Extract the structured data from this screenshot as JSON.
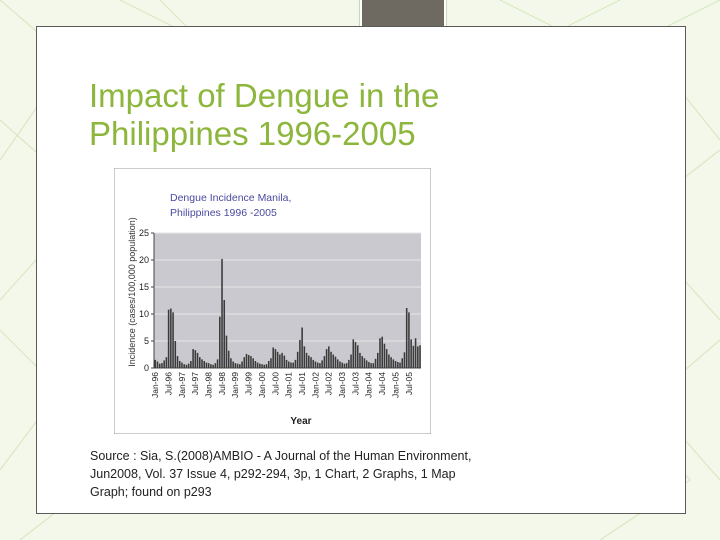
{
  "slide": {
    "title_lines": [
      "Impact of Dengue in the",
      "Philippines 1996-2005"
    ],
    "source_lines": [
      "Source : Sia, S.(2008)AMBIO - A Journal of the Human Environment,",
      "Jun2008, Vol. 37 Issue 4, p292-294, 3p, 1 Chart, 2 Graphs, 1 Map",
      "Graph; found on p293"
    ]
  },
  "colors": {
    "background": "#f3f8ea",
    "title": "#8cb63c",
    "tab": "#6e6a62",
    "plot_bg": "#c9c9cf",
    "bar": "#3a3a3a",
    "title_text_chart": "#4a4aa0"
  },
  "chart_data": {
    "type": "bar",
    "title": "Dengue Incidence Manila, Philippines 1996 -2005",
    "title_lines": [
      "Dengue Incidence Manila,",
      "Philippines 1996 -2005"
    ],
    "xlabel": "Year",
    "ylabel": "Incidence (cases/100,000 population)",
    "ylim": [
      0,
      25
    ],
    "yticks": [
      0,
      5,
      10,
      15,
      20,
      25
    ],
    "grid": true,
    "x_tick_labels": [
      "Jan-96",
      "Jul-96",
      "Jan-97",
      "Jul-97",
      "Jan-98",
      "Jul-98",
      "Jan-99",
      "Jul-99",
      "Jan-00",
      "Jul-00",
      "Jan-01",
      "Jul-01",
      "Jan-02",
      "Jul-02",
      "Jan-03",
      "Jul-03",
      "Jan-04",
      "Jul-04",
      "Jan-05",
      "Jul-05"
    ],
    "categories": [
      "Jan-96",
      "Feb-96",
      "Mar-96",
      "Apr-96",
      "May-96",
      "Jun-96",
      "Jul-96",
      "Aug-96",
      "Sep-96",
      "Oct-96",
      "Nov-96",
      "Dec-96",
      "Jan-97",
      "Feb-97",
      "Mar-97",
      "Apr-97",
      "May-97",
      "Jun-97",
      "Jul-97",
      "Aug-97",
      "Sep-97",
      "Oct-97",
      "Nov-97",
      "Dec-97",
      "Jan-98",
      "Feb-98",
      "Mar-98",
      "Apr-98",
      "May-98",
      "Jun-98",
      "Jul-98",
      "Aug-98",
      "Sep-98",
      "Oct-98",
      "Nov-98",
      "Dec-98",
      "Jan-99",
      "Feb-99",
      "Mar-99",
      "Apr-99",
      "May-99",
      "Jun-99",
      "Jul-99",
      "Aug-99",
      "Sep-99",
      "Oct-99",
      "Nov-99",
      "Dec-99",
      "Jan-00",
      "Feb-00",
      "Mar-00",
      "Apr-00",
      "May-00",
      "Jun-00",
      "Jul-00",
      "Aug-00",
      "Sep-00",
      "Oct-00",
      "Nov-00",
      "Dec-00",
      "Jan-01",
      "Feb-01",
      "Mar-01",
      "Apr-01",
      "May-01",
      "Jun-01",
      "Jul-01",
      "Aug-01",
      "Sep-01",
      "Oct-01",
      "Nov-01",
      "Dec-01",
      "Jan-02",
      "Feb-02",
      "Mar-02",
      "Apr-02",
      "May-02",
      "Jun-02",
      "Jul-02",
      "Aug-02",
      "Sep-02",
      "Oct-02",
      "Nov-02",
      "Dec-02",
      "Jan-03",
      "Feb-03",
      "Mar-03",
      "Apr-03",
      "May-03",
      "Jun-03",
      "Jul-03",
      "Aug-03",
      "Sep-03",
      "Oct-03",
      "Nov-03",
      "Dec-03",
      "Jan-04",
      "Feb-04",
      "Mar-04",
      "Apr-04",
      "May-04",
      "Jun-04",
      "Jul-04",
      "Aug-04",
      "Sep-04",
      "Oct-04",
      "Nov-04",
      "Dec-04",
      "Jan-05",
      "Feb-05",
      "Mar-05",
      "Apr-05",
      "May-05",
      "Jun-05",
      "Jul-05",
      "Aug-05",
      "Sep-05",
      "Oct-05",
      "Nov-05",
      "Dec-05"
    ],
    "values": [
      1.5,
      1.2,
      0.8,
      0.9,
      1.4,
      2.0,
      10.8,
      11.0,
      10.3,
      5.0,
      2.2,
      1.3,
      1.0,
      0.7,
      0.6,
      0.8,
      1.3,
      3.5,
      3.3,
      2.8,
      2.0,
      1.6,
      1.3,
      1.0,
      0.9,
      0.7,
      0.6,
      0.9,
      1.6,
      9.5,
      20.2,
      12.6,
      6.0,
      3.2,
      1.8,
      1.2,
      0.9,
      0.8,
      0.7,
      1.2,
      2.0,
      2.6,
      2.4,
      2.2,
      1.8,
      1.3,
      1.0,
      0.8,
      0.7,
      0.6,
      0.7,
      1.3,
      1.8,
      3.8,
      3.5,
      3.0,
      2.5,
      2.8,
      2.3,
      1.5,
      1.2,
      1.0,
      1.0,
      1.5,
      3.0,
      5.2,
      7.5,
      4.0,
      2.8,
      2.3,
      2.0,
      1.5,
      1.2,
      1.0,
      0.9,
      1.4,
      2.2,
      3.5,
      4.0,
      3.0,
      2.5,
      2.1,
      1.6,
      1.2,
      1.0,
      0.8,
      0.9,
      1.5,
      2.5,
      5.3,
      4.8,
      4.2,
      2.8,
      2.2,
      1.8,
      1.4,
      1.1,
      0.9,
      0.9,
      1.7,
      2.8,
      5.5,
      5.8,
      4.5,
      3.5,
      2.5,
      2.0,
      1.6,
      1.3,
      1.1,
      1.0,
      1.8,
      2.9,
      11.1,
      10.3,
      5.3,
      4.1,
      5.5,
      4.0,
      4.2
    ]
  }
}
